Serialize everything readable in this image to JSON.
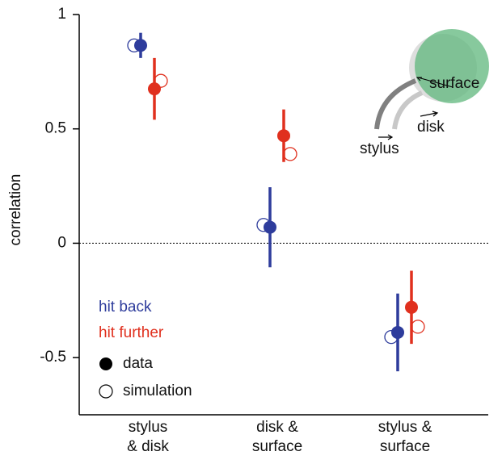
{
  "chart_data": {
    "type": "dot_errorbar",
    "ylabel": "correlation",
    "categories": [
      "stylus\n& disk",
      "disk &\nsurface",
      "stylus &\nsurface"
    ],
    "series": [
      {
        "name": "hit back",
        "color": "#2e3c9c",
        "values": [
          0.865,
          0.07,
          -0.39
        ],
        "errors": [
          0.055,
          0.175,
          0.17
        ],
        "simulation": [
          0.865,
          0.08,
          -0.41
        ]
      },
      {
        "name": "hit further",
        "color": "#e0301e",
        "values": [
          0.675,
          0.47,
          -0.28
        ],
        "errors": [
          0.135,
          0.115,
          0.16
        ],
        "simulation": [
          0.71,
          0.39,
          -0.365
        ]
      }
    ],
    "marker_legend": {
      "filled": "data",
      "open": "simulation"
    },
    "ylim": [
      -0.75,
      1
    ],
    "yticks": [
      1,
      0.5,
      0,
      -0.5
    ],
    "reference_line": 0,
    "inset_labels": {
      "surface": "surface",
      "disk": "disk",
      "stylus": "stylus"
    }
  }
}
